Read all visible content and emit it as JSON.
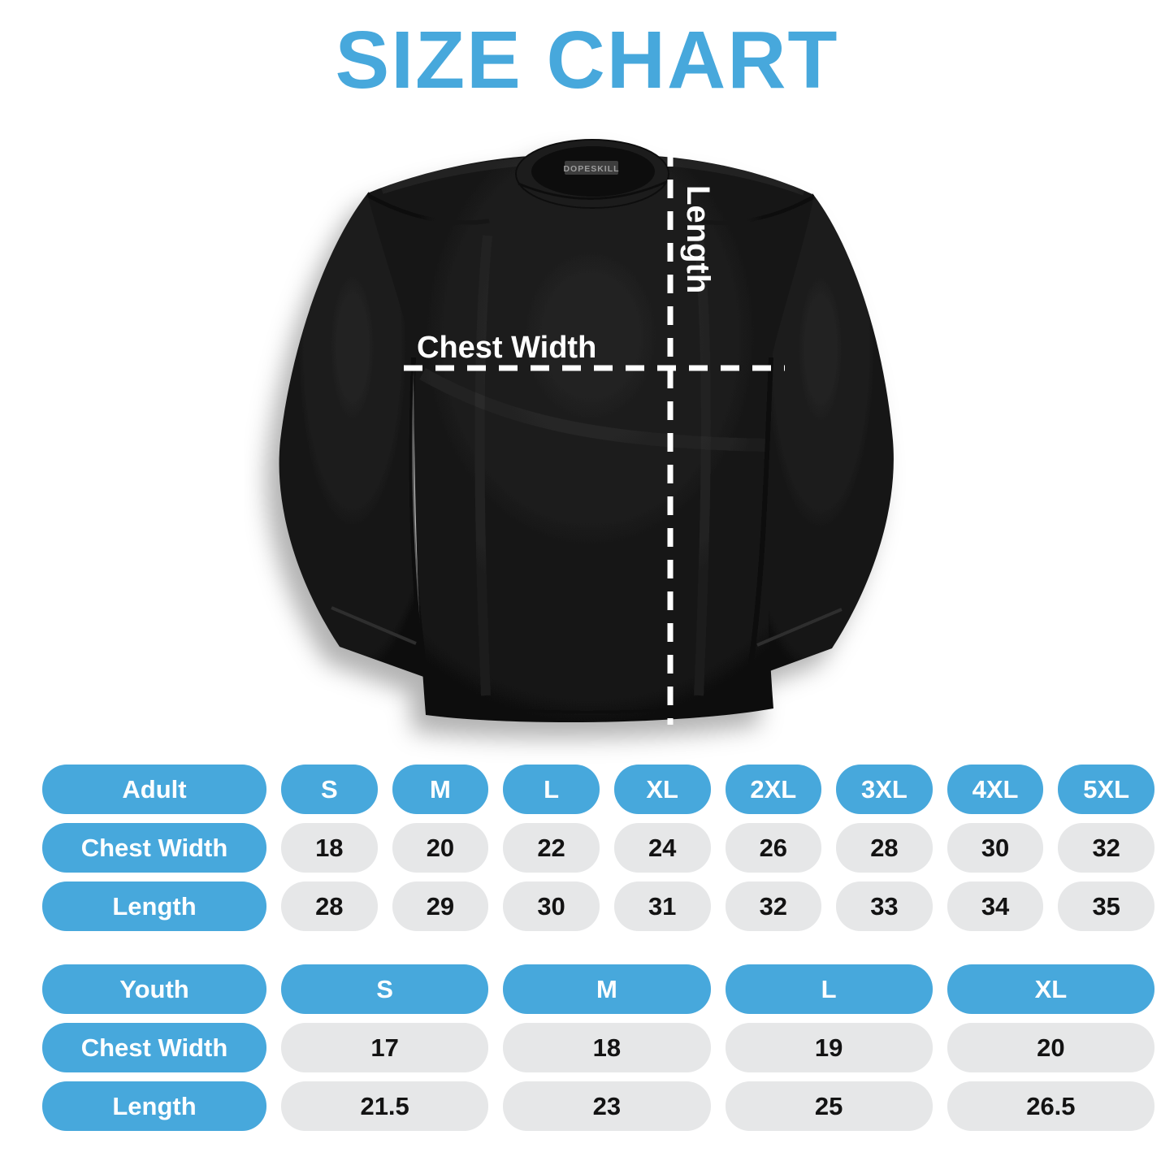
{
  "title": "SIZE CHART",
  "colors": {
    "accent_blue": "#47A8DC",
    "value_pill_gray": "#E6E7E8",
    "shirt_black": "#161616",
    "measure_text_white": "#FFFFFF",
    "value_text_black": "#131313"
  },
  "shirt": {
    "brand_tag": "DOPESKILL",
    "length_label": "Length",
    "chest_width_label": "Chest Width"
  },
  "adult_table": {
    "header": {
      "label": "Adult",
      "sizes": [
        "S",
        "M",
        "L",
        "XL",
        "2XL",
        "3XL",
        "4XL",
        "5XL"
      ]
    },
    "rows": [
      {
        "label": "Chest Width",
        "values": [
          "18",
          "20",
          "22",
          "24",
          "26",
          "28",
          "30",
          "32"
        ]
      },
      {
        "label": "Length",
        "values": [
          "28",
          "29",
          "30",
          "31",
          "32",
          "33",
          "34",
          "35"
        ]
      }
    ]
  },
  "youth_table": {
    "header": {
      "label": "Youth",
      "sizes": [
        "S",
        "M",
        "L",
        "XL"
      ]
    },
    "rows": [
      {
        "label": "Chest Width",
        "values": [
          "17",
          "18",
          "19",
          "20"
        ]
      },
      {
        "label": "Length",
        "values": [
          "21.5",
          "23",
          "25",
          "26.5"
        ]
      }
    ]
  }
}
